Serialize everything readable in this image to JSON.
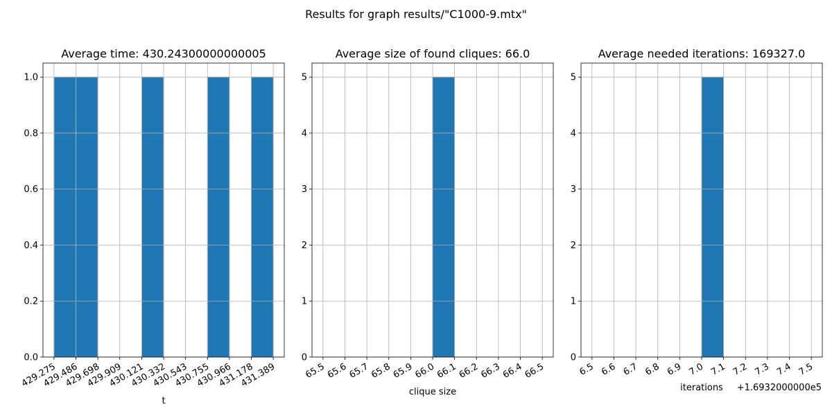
{
  "title": "Results for graph results/\"C1000-9.mtx\"",
  "chart_data": [
    {
      "type": "histogram",
      "title": "Average time: 430.24300000000005",
      "xlabel": "t",
      "bins": [
        429.275,
        429.486,
        429.698,
        429.909,
        430.121,
        430.332,
        430.543,
        430.755,
        430.966,
        431.178,
        431.389
      ],
      "values": [
        1,
        1,
        0,
        0,
        1,
        0,
        0,
        1,
        0,
        1
      ],
      "color": "#1f77b4",
      "edgecolor": "#a0a0a0",
      "grid": true,
      "xlim": [
        429.169,
        431.495
      ],
      "xticks": [
        429.275,
        429.486,
        429.698,
        429.909,
        430.121,
        430.332,
        430.543,
        430.755,
        430.966,
        431.178,
        431.389
      ],
      "ylim": [
        0,
        1.05
      ],
      "yticks": [
        {
          "value": 0,
          "label": "0.0"
        },
        0.2,
        0.4,
        0.6,
        0.8,
        {
          "value": 1,
          "label": "1.0"
        }
      ]
    },
    {
      "type": "histogram",
      "title": "Average size of found cliques: 66.0",
      "xlabel": "clique size",
      "bins": [
        65.5,
        65.6,
        65.7,
        65.8,
        65.9,
        66.0,
        66.1,
        66.2,
        66.3,
        66.4,
        66.5
      ],
      "values": [
        0,
        0,
        0,
        0,
        0,
        5,
        0,
        0,
        0,
        0
      ],
      "color": "#1f77b4",
      "edgecolor": "#a0a0a0",
      "grid": true,
      "xlim": [
        65.45,
        66.55
      ],
      "xticks": [
        65.5,
        65.6,
        65.7,
        65.8,
        65.9,
        {
          "value": 66,
          "label": "66.0"
        },
        66.1,
        66.2,
        66.3,
        66.4,
        66.5
      ],
      "ylim": [
        0,
        5.25
      ],
      "yticks": [
        0,
        1,
        2,
        3,
        4,
        5
      ]
    },
    {
      "type": "histogram",
      "title": "Average needed iterations: 169327.0",
      "xlabel": "iterations",
      "x_offset_label": "+1.6932000000e5",
      "bins": [
        169326.5,
        169326.6,
        169326.7,
        169326.8,
        169326.9,
        169327.0,
        169327.1,
        169327.2,
        169327.3,
        169327.4,
        169327.5
      ],
      "values": [
        0,
        0,
        0,
        0,
        0,
        5,
        0,
        0,
        0,
        0
      ],
      "color": "#1f77b4",
      "edgecolor": "#a0a0a0",
      "grid": true,
      "xlim": [
        169326.45,
        169327.55
      ],
      "xticks": [
        {
          "value": 169326.5,
          "label": "6.5"
        },
        {
          "value": 169326.6,
          "label": "6.6"
        },
        {
          "value": 169326.7,
          "label": "6.7"
        },
        {
          "value": 169326.8,
          "label": "6.8"
        },
        {
          "value": 169326.9,
          "label": "6.9"
        },
        {
          "value": 169327.0,
          "label": "7.0"
        },
        {
          "value": 169327.1,
          "label": "7.1"
        },
        {
          "value": 169327.2,
          "label": "7.2"
        },
        {
          "value": 169327.3,
          "label": "7.3"
        },
        {
          "value": 169327.4,
          "label": "7.4"
        },
        {
          "value": 169327.5,
          "label": "7.5"
        }
      ],
      "ylim": [
        0,
        5.25
      ],
      "yticks": [
        0,
        1,
        2,
        3,
        4,
        5
      ]
    }
  ]
}
